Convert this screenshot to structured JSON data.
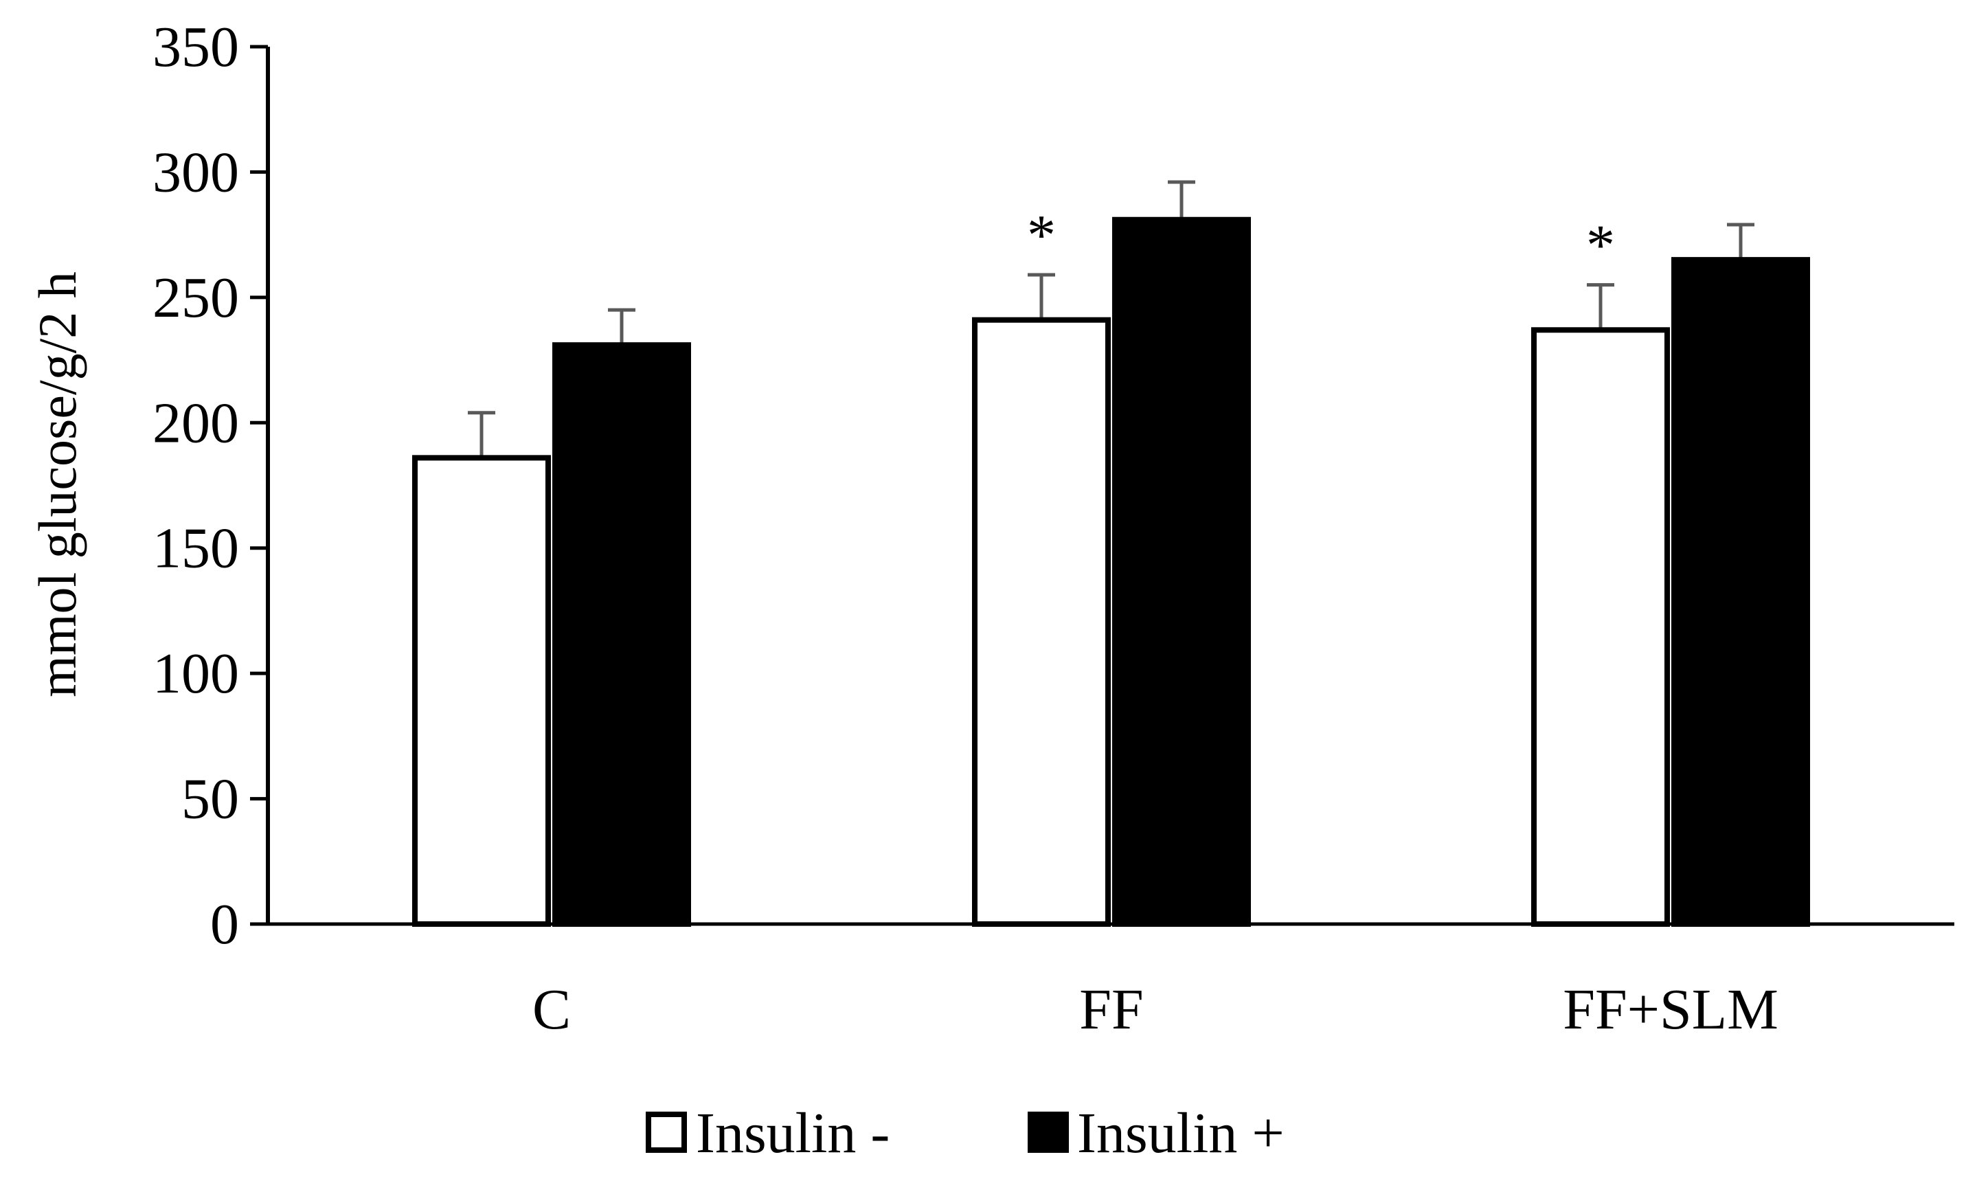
{
  "chart_data": {
    "type": "bar",
    "title": "",
    "xlabel": "",
    "ylabel": "mmol glucose/g/2 h",
    "ylim": [
      0,
      350
    ],
    "yticks": [
      0,
      50,
      100,
      150,
      200,
      250,
      300,
      350
    ],
    "categories": [
      "C",
      "FF",
      "FF+SLM"
    ],
    "series": [
      {
        "name": "Insulin -",
        "fill": "#ffffff",
        "values": [
          186,
          241,
          237
        ],
        "errors": [
          18,
          18,
          18
        ],
        "annotations": [
          "",
          "*",
          "*"
        ]
      },
      {
        "name": "Insulin +",
        "fill": "#000000",
        "values": [
          231,
          281,
          265
        ],
        "errors": [
          14,
          15,
          14
        ],
        "annotations": [
          "",
          "",
          ""
        ]
      }
    ],
    "legend_position": "bottom-center",
    "grid": false
  },
  "colors": {
    "axis": "#000000",
    "bar_outline": "#000000",
    "error_bar": "#595959"
  }
}
